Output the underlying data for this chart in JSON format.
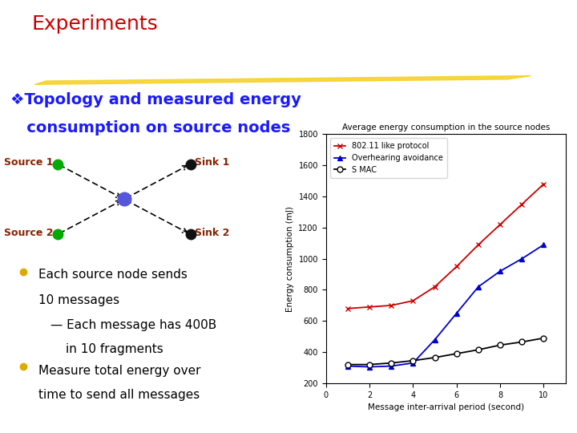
{
  "title": "Experiments",
  "title_color": "#cc0000",
  "subtitle_line1": "❖Topology and measured energy",
  "subtitle_line2": "   consumption on source nodes",
  "subtitle_color": "#1a1aff",
  "bullet_color": "#ddaa00",
  "node_label_color": "#882200",
  "highlight_bar_color": "#f5d020",
  "chart_title": "Average energy consumption in the source nodes",
  "chart_xlabel": "Message inter-arrival period (second)",
  "chart_ylabel": "Energy consumption (mJ)",
  "x_values": [
    1,
    2,
    3,
    4,
    5,
    6,
    7,
    8,
    9,
    10
  ],
  "series_802": {
    "label": "802.11 like protocol",
    "color": "#cc0000",
    "marker": "x",
    "y": [
      680,
      690,
      700,
      730,
      820,
      950,
      1090,
      1220,
      1350,
      1480
    ]
  },
  "series_overhearing": {
    "label": "Overhearing avoidance",
    "color": "#0000cc",
    "marker": "^",
    "y": [
      310,
      305,
      310,
      330,
      480,
      650,
      820,
      920,
      1000,
      1090
    ]
  },
  "series_smac": {
    "label": "S MAC",
    "color": "#000000",
    "marker": "o",
    "y": [
      320,
      320,
      330,
      345,
      365,
      390,
      415,
      445,
      465,
      490
    ]
  },
  "ylim": [
    200,
    1800
  ],
  "xlim": [
    0,
    11
  ],
  "yticks": [
    200,
    400,
    600,
    800,
    1000,
    1200,
    1400,
    1600,
    1800
  ],
  "xticks": [
    0,
    2,
    4,
    6,
    8,
    10
  ],
  "bg_color": "#ffffff",
  "source1_label": "Source 1",
  "source2_label": "Source 2",
  "sink1_label": "Sink 1",
  "sink2_label": "Sink 2",
  "node_source_color": "#00aa00",
  "node_sink_color": "#111111",
  "node_center_color": "#5555dd"
}
